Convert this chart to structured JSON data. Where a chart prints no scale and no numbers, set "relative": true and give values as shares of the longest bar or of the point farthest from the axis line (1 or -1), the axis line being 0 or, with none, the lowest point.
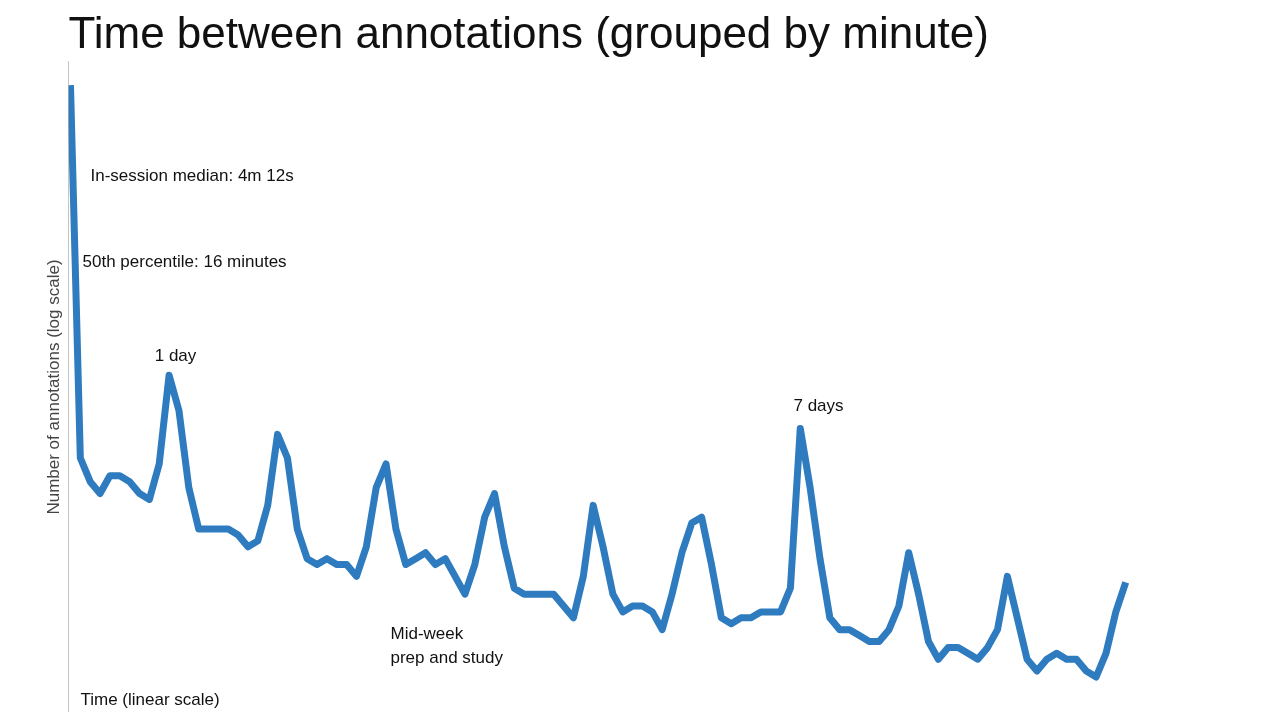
{
  "chart_data": {
    "type": "line",
    "title": "Time between annotations (grouped by minute)",
    "xlabel": "Time (linear scale)",
    "ylabel": "Number of annotations (log scale)",
    "relative": true,
    "line_style": "solid",
    "grid": false,
    "categories": [
      null,
      null,
      null,
      null,
      null,
      null,
      null,
      null,
      null,
      null,
      null,
      null,
      null,
      null,
      null,
      null,
      null,
      null,
      null,
      null,
      null,
      null,
      null,
      null,
      null,
      null,
      null,
      null,
      null,
      null,
      null,
      null,
      null,
      null,
      null,
      null,
      null,
      null,
      null,
      null,
      null,
      null,
      null,
      null,
      null,
      null,
      null,
      null,
      null,
      null,
      null,
      null,
      null,
      null,
      null,
      null,
      null,
      null,
      null,
      null,
      null,
      null,
      null,
      null,
      null,
      null,
      null,
      null,
      null,
      null,
      null,
      null,
      null,
      null,
      null,
      null,
      null,
      null,
      null,
      null,
      null,
      null,
      null,
      null,
      null,
      null,
      null,
      null,
      null,
      null,
      null,
      null,
      null,
      null,
      null,
      null,
      null,
      null,
      null,
      null,
      null,
      null,
      null,
      null,
      null,
      null,
      null,
      null
    ],
    "series": [
      {
        "color": "#2e7bbf",
        "values": [
          1.0,
          0.37,
          0.33,
          0.31,
          0.34,
          0.34,
          0.33,
          0.31,
          0.3,
          0.36,
          0.51,
          0.45,
          0.32,
          0.25,
          0.25,
          0.25,
          0.25,
          0.24,
          0.22,
          0.23,
          0.29,
          0.41,
          0.37,
          0.25,
          0.2,
          0.19,
          0.2,
          0.19,
          0.19,
          0.17,
          0.22,
          0.32,
          0.36,
          0.25,
          0.19,
          0.2,
          0.21,
          0.19,
          0.2,
          0.17,
          0.14,
          0.19,
          0.27,
          0.31,
          0.22,
          0.15,
          0.14,
          0.14,
          0.14,
          0.14,
          0.12,
          0.1,
          0.17,
          0.29,
          0.22,
          0.14,
          0.11,
          0.12,
          0.12,
          0.11,
          0.08,
          0.14,
          0.21,
          0.26,
          0.27,
          0.19,
          0.1,
          0.09,
          0.1,
          0.1,
          0.11,
          0.11,
          0.11,
          0.15,
          0.42,
          0.32,
          0.2,
          0.1,
          0.08,
          0.08,
          0.07,
          0.06,
          0.06,
          0.08,
          0.12,
          0.21,
          0.14,
          0.06,
          0.03,
          0.05,
          0.05,
          0.04,
          0.03,
          0.05,
          0.08,
          0.17,
          0.1,
          0.03,
          0.01,
          0.03,
          0.04,
          0.03,
          0.03,
          0.01,
          0.0,
          0.04,
          0.11,
          0.16
        ]
      }
    ],
    "annotations": [
      "In-session median: 4m 12s",
      "50th percentile: 16 minutes",
      "1 day",
      "7 days",
      "Mid-week\nprep and study"
    ]
  }
}
